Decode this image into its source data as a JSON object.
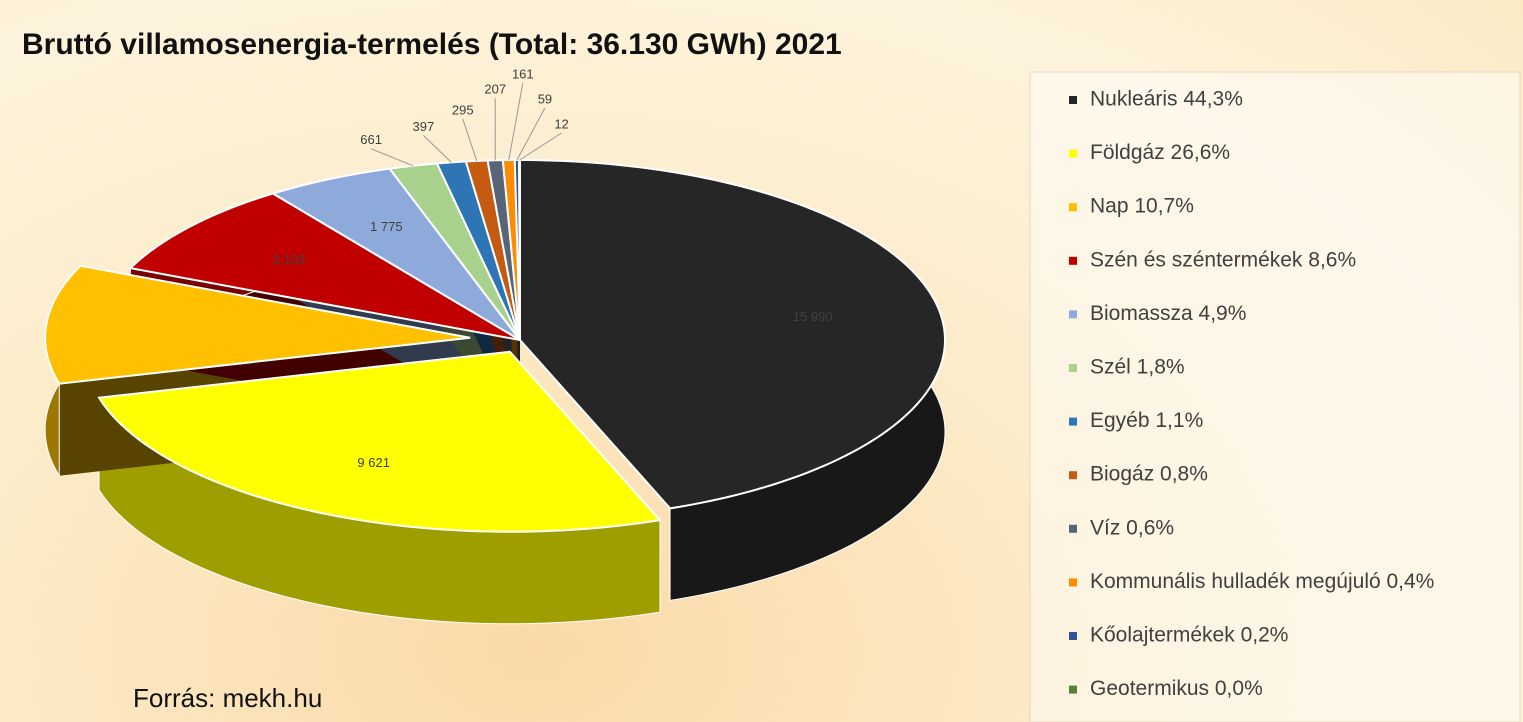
{
  "chart_data": {
    "type": "pie",
    "title": "Bruttó villamosenergia-termelés (Total: 36.130 GWh) 2021",
    "source": "Forrás: mekh.hu",
    "categories": [
      "Nukleáris 44,3%",
      "Földgáz 26,6%",
      "Nap 10,7%",
      "Szén és széntermékek 8,6%",
      "Biomassza 4,9%",
      "Szél 1,8%",
      "Egyéb 1,1%",
      "Biogáz 0,8%",
      "Víz 0,6%",
      "Kommunális hulladék megújuló 0,4%",
      "Kőolajtermékek 0,2%",
      "Geotermikus 0,0%"
    ],
    "values": [
      15990,
      9621,
      3849,
      3103,
      1775,
      661,
      397,
      295,
      207,
      161,
      59,
      12
    ],
    "value_labels": [
      "15 990",
      "9 621",
      null,
      "3 103",
      "1 775",
      "661",
      "397",
      "295",
      "207",
      "161",
      "59",
      "12"
    ],
    "colors": [
      "#262626",
      "#ffff00",
      "#ffc000",
      "#c00000",
      "#8eaadb",
      "#a9d18e",
      "#2e75b6",
      "#c55a11",
      "#5a6478",
      "#ff8c00",
      "#2f5597",
      "#548235"
    ],
    "legend": "right"
  }
}
